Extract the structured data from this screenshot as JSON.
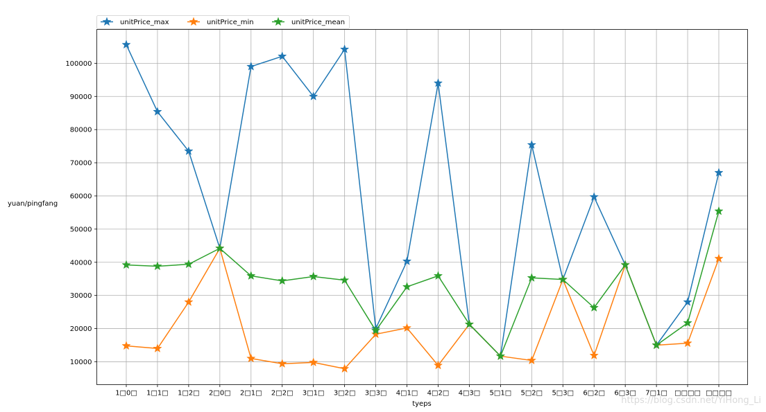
{
  "chart_data": {
    "type": "line",
    "categories": [
      "1□0□",
      "1□1□",
      "1□2□",
      "2□0□",
      "2□1□",
      "2□2□",
      "3□1□",
      "3□2□",
      "3□3□",
      "4□1□",
      "4□2□",
      "4□3□",
      "5□1□",
      "5□2□",
      "5□3□",
      "6□2□",
      "6□3□",
      "7□1□",
      "□□□□",
      "□□□□"
    ],
    "series": [
      {
        "name": "unitPrice_max",
        "color": "#1f77b4",
        "marker": "star",
        "values": [
          105600,
          85400,
          73500,
          44200,
          99000,
          102100,
          90000,
          104200,
          20000,
          40300,
          94000,
          21300,
          11700,
          75400,
          34800,
          59700,
          39200,
          15000,
          28000,
          67000
        ]
      },
      {
        "name": "unitPrice_min",
        "color": "#ff7f0e",
        "marker": "star",
        "values": [
          14800,
          14000,
          28000,
          44200,
          11000,
          9400,
          9800,
          7900,
          18300,
          20200,
          8900,
          21300,
          11700,
          10400,
          34800,
          11900,
          39200,
          15000,
          15600,
          41100
        ]
      },
      {
        "name": "unitPrice_mean",
        "color": "#2ca02c",
        "marker": "star",
        "values": [
          39200,
          38800,
          39400,
          44200,
          35900,
          34400,
          35700,
          34600,
          19400,
          32600,
          35900,
          21300,
          11700,
          35300,
          34800,
          26300,
          39200,
          15000,
          21700,
          55400
        ]
      }
    ],
    "xlabel": "tyeps",
    "ylabel": "yuan/pingfang",
    "ylim": [
      3100,
      110200
    ],
    "yticks": [
      10000,
      20000,
      30000,
      40000,
      50000,
      60000,
      70000,
      80000,
      90000,
      100000
    ],
    "grid": true,
    "legend": "upper-left"
  },
  "watermark": "https://blog.csdn.net/YiHong_Li"
}
